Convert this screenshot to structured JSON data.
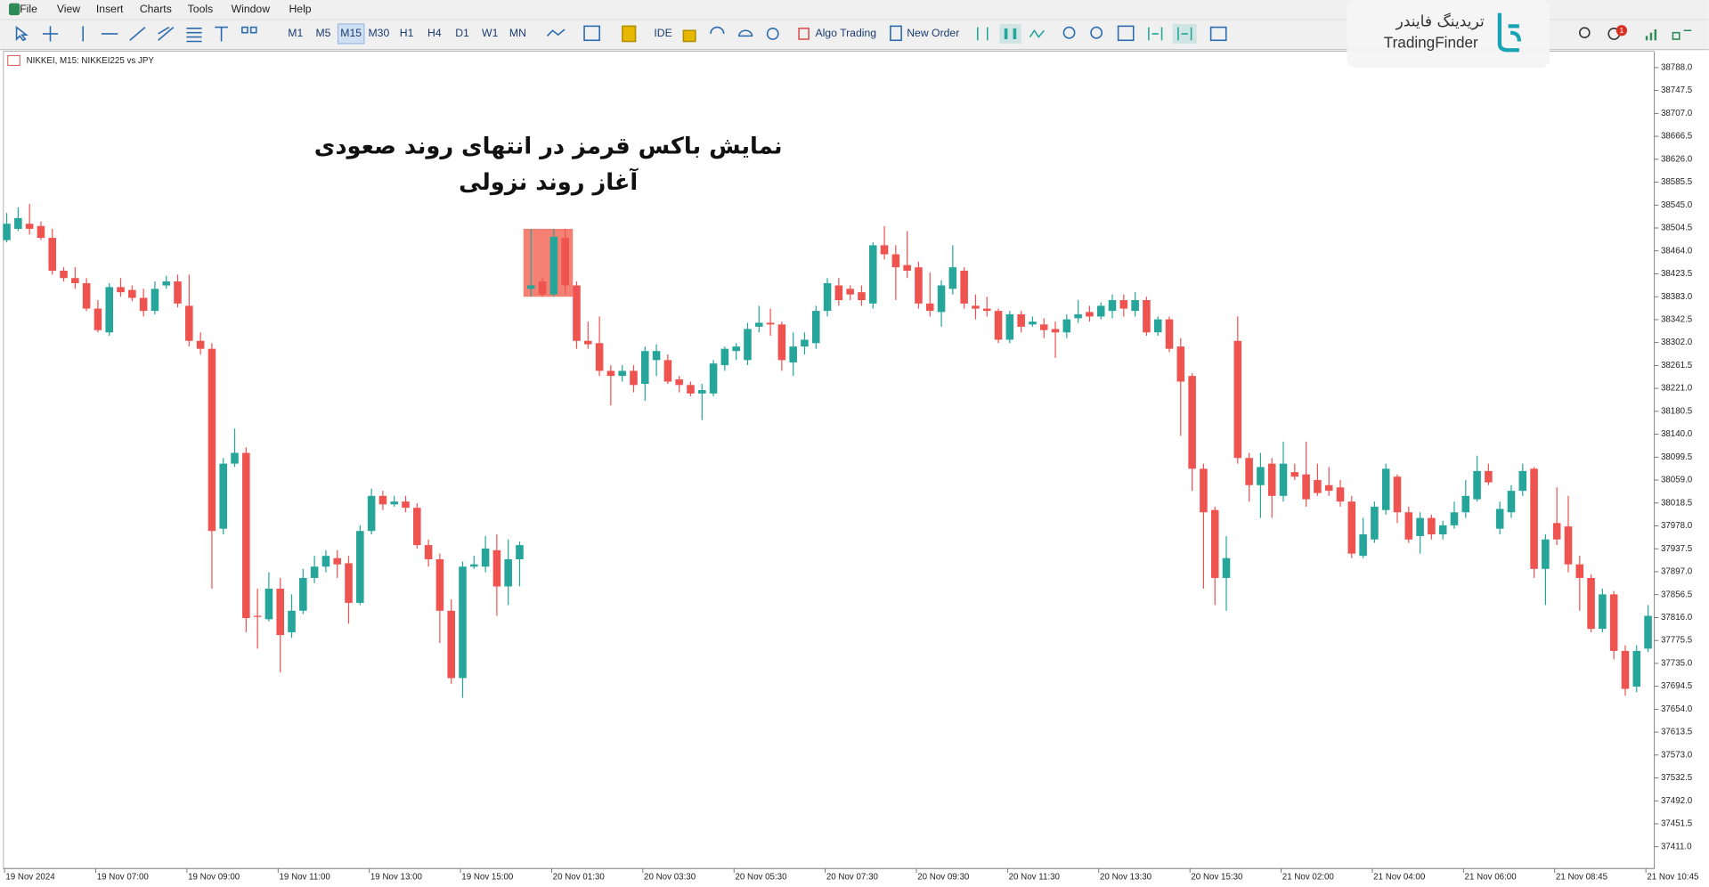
{
  "menu": [
    "File",
    "View",
    "Insert",
    "Charts",
    "Tools",
    "Window",
    "Help"
  ],
  "toolbar": {
    "timeframes": [
      "M1",
      "M5",
      "M15",
      "M30",
      "H1",
      "H4",
      "D1",
      "W1",
      "MN"
    ],
    "active_timeframe": "M15",
    "ide": "IDE",
    "algo_trading": "Algo Trading",
    "new_order": "New Order",
    "notifications": "1"
  },
  "watermark": {
    "fa": "تریدینگ فایندر",
    "en": "TradingFinder"
  },
  "chart_data": {
    "type": "candlestick",
    "label": "NIKKEI, M15:  NIKKEI225 vs JPY",
    "annotation": [
      "نمایش باکس قرمز در انتهای روند صعودی",
      "آغاز روند نزولی"
    ],
    "up_color": "#26a69a",
    "down_color": "#ef5350",
    "box_color": "#f26b5b",
    "candles": [
      [
        38483,
        38531,
        38479,
        38512
      ],
      [
        38503,
        38541,
        38499,
        38522
      ],
      [
        38512,
        38547,
        38493,
        38503
      ],
      [
        38508,
        38516,
        38483,
        38487
      ],
      [
        38487,
        38503,
        38422,
        38429
      ],
      [
        38429,
        38435,
        38410,
        38416
      ],
      [
        38416,
        38435,
        38397,
        38407
      ],
      [
        38407,
        38416,
        38358,
        38362
      ],
      [
        38362,
        38377,
        38320,
        38324
      ],
      [
        38320,
        38407,
        38314,
        38400
      ],
      [
        38400,
        38416,
        38383,
        38391
      ],
      [
        38395,
        38403,
        38375,
        38381
      ],
      [
        38381,
        38397,
        38348,
        38358
      ],
      [
        38358,
        38410,
        38352,
        38397
      ],
      [
        38403,
        38420,
        38397,
        38410
      ],
      [
        38410,
        38422,
        38364,
        38371
      ],
      [
        38367,
        38422,
        38295,
        38305
      ],
      [
        38305,
        38320,
        38281,
        38291
      ],
      [
        38291,
        38301,
        37867,
        37969
      ],
      [
        37973,
        38098,
        37963,
        38088
      ],
      [
        38088,
        38150,
        38082,
        38107
      ],
      [
        38107,
        38117,
        37790,
        37815
      ],
      [
        37819,
        37867,
        37761,
        37817
      ],
      [
        37813,
        37896,
        37809,
        37867
      ],
      [
        37867,
        37886,
        37719,
        37785
      ],
      [
        37790,
        37857,
        37780,
        37828
      ],
      [
        37828,
        37902,
        37822,
        37886
      ],
      [
        37886,
        37925,
        37877,
        37906
      ],
      [
        37906,
        37935,
        37896,
        37925
      ],
      [
        37921,
        37935,
        37886,
        37910
      ],
      [
        37912,
        37925,
        37805,
        37842
      ],
      [
        37842,
        37979,
        37838,
        37969
      ],
      [
        37969,
        38044,
        37963,
        38031
      ],
      [
        38031,
        38040,
        38006,
        38016
      ],
      [
        38016,
        38031,
        38012,
        38021
      ],
      [
        38021,
        38031,
        38002,
        38010
      ],
      [
        38010,
        38018,
        37938,
        37944
      ],
      [
        37944,
        37954,
        37906,
        37919
      ],
      [
        37919,
        37929,
        37771,
        37828
      ],
      [
        37828,
        37848,
        37699,
        37709
      ],
      [
        37709,
        37915,
        37674,
        37906
      ],
      [
        37906,
        37925,
        37902,
        37910
      ],
      [
        37906,
        37960,
        37896,
        37938
      ],
      [
        37935,
        37963,
        37819,
        37871
      ],
      [
        37871,
        37954,
        37838,
        37919
      ],
      [
        37919,
        37950,
        37871,
        37944
      ],
      [
        38397,
        38503,
        38383,
        38403
      ],
      [
        38410,
        38416,
        38383,
        38387
      ],
      [
        38387,
        38503,
        38383,
        38489
      ],
      [
        38487,
        38503,
        38387,
        38403
      ],
      [
        38403,
        38410,
        38291,
        38305
      ],
      [
        38305,
        38339,
        38291,
        38299
      ],
      [
        38301,
        38348,
        38243,
        38252
      ],
      [
        38252,
        38262,
        38191,
        38243
      ],
      [
        38243,
        38262,
        38233,
        38252
      ],
      [
        38252,
        38262,
        38214,
        38227
      ],
      [
        38229,
        38295,
        38199,
        38287
      ],
      [
        38271,
        38299,
        38243,
        38287
      ],
      [
        38271,
        38281,
        38229,
        38233
      ],
      [
        38237,
        38243,
        38214,
        38227
      ],
      [
        38227,
        38233,
        38207,
        38212
      ],
      [
        38212,
        38229,
        38165,
        38218
      ],
      [
        38212,
        38271,
        38207,
        38265
      ],
      [
        38262,
        38295,
        38252,
        38291
      ],
      [
        38287,
        38301,
        38271,
        38295
      ],
      [
        38271,
        38337,
        38262,
        38326
      ],
      [
        38330,
        38367,
        38320,
        38337
      ],
      [
        38337,
        38362,
        38314,
        38334
      ],
      [
        38334,
        38339,
        38252,
        38271
      ],
      [
        38267,
        38320,
        38243,
        38295
      ],
      [
        38295,
        38320,
        38281,
        38307
      ],
      [
        38301,
        38367,
        38291,
        38358
      ],
      [
        38358,
        38416,
        38348,
        38407
      ],
      [
        38403,
        38416,
        38367,
        38377
      ],
      [
        38397,
        38403,
        38377,
        38387
      ],
      [
        38391,
        38403,
        38367,
        38377
      ],
      [
        38371,
        38479,
        38362,
        38474
      ],
      [
        38474,
        38508,
        38449,
        38458
      ],
      [
        38458,
        38474,
        38377,
        38435
      ],
      [
        38439,
        38499,
        38416,
        38429
      ],
      [
        38435,
        38445,
        38362,
        38371
      ],
      [
        38371,
        38426,
        38348,
        38358
      ],
      [
        38356,
        38412,
        38330,
        38403
      ],
      [
        38397,
        38474,
        38387,
        38435
      ],
      [
        38429,
        38435,
        38362,
        38371
      ],
      [
        38367,
        38387,
        38343,
        38362
      ],
      [
        38362,
        38383,
        38348,
        38358
      ],
      [
        38358,
        38362,
        38301,
        38307
      ],
      [
        38307,
        38358,
        38301,
        38352
      ],
      [
        38352,
        38358,
        38320,
        38330
      ],
      [
        38334,
        38348,
        38330,
        38339
      ],
      [
        38334,
        38345,
        38310,
        38324
      ],
      [
        38326,
        38339,
        38275,
        38320
      ],
      [
        38320,
        38352,
        38310,
        38343
      ],
      [
        38345,
        38377,
        38337,
        38352
      ],
      [
        38356,
        38367,
        38339,
        38348
      ],
      [
        38348,
        38373,
        38343,
        38367
      ],
      [
        38358,
        38387,
        38345,
        38377
      ],
      [
        38377,
        38387,
        38348,
        38362
      ],
      [
        38358,
        38391,
        38348,
        38377
      ],
      [
        38377,
        38383,
        38314,
        38320
      ],
      [
        38320,
        38348,
        38314,
        38343
      ],
      [
        38343,
        38348,
        38285,
        38291
      ],
      [
        38295,
        38310,
        38137,
        38233
      ],
      [
        38243,
        38248,
        38040,
        38079
      ],
      [
        38079,
        38088,
        37867,
        38002
      ],
      [
        38006,
        38012,
        37838,
        37886
      ],
      [
        37886,
        37960,
        37828,
        37921
      ],
      [
        38305,
        38348,
        38088,
        38098
      ],
      [
        38098,
        38107,
        38021,
        38050
      ],
      [
        38050,
        38107,
        37992,
        38082
      ],
      [
        38088,
        38098,
        37992,
        38031
      ],
      [
        38031,
        38127,
        38021,
        38088
      ],
      [
        38073,
        38088,
        38059,
        38065
      ],
      [
        38069,
        38127,
        38012,
        38025
      ],
      [
        38059,
        38088,
        38031,
        38036
      ],
      [
        38050,
        38082,
        38031,
        38040
      ],
      [
        38046,
        38059,
        38012,
        38021
      ],
      [
        38021,
        38031,
        37921,
        37929
      ],
      [
        37925,
        37992,
        37921,
        37963
      ],
      [
        37954,
        38021,
        37948,
        38012
      ],
      [
        38006,
        38088,
        37998,
        38079
      ],
      [
        38065,
        38069,
        37983,
        38002
      ],
      [
        38002,
        38012,
        37948,
        37954
      ],
      [
        37960,
        38002,
        37929,
        37992
      ],
      [
        37992,
        37998,
        37954,
        37963
      ],
      [
        37963,
        37987,
        37954,
        37979
      ],
      [
        37979,
        38021,
        37973,
        38002
      ],
      [
        38002,
        38059,
        37992,
        38031
      ],
      [
        38025,
        38102,
        38021,
        38075
      ],
      [
        38075,
        38088,
        38050,
        38055
      ],
      [
        37973,
        38021,
        37963,
        38008
      ],
      [
        38002,
        38050,
        37992,
        38040
      ],
      [
        38040,
        38088,
        38031,
        38075
      ],
      [
        38079,
        38082,
        37886,
        37902
      ],
      [
        37902,
        37963,
        37838,
        37954
      ],
      [
        37983,
        38046,
        37944,
        37954
      ],
      [
        37977,
        38031,
        37896,
        37910
      ],
      [
        37910,
        37925,
        37828,
        37886
      ],
      [
        37886,
        37892,
        37790,
        37796
      ],
      [
        37796,
        37867,
        37790,
        37857
      ],
      [
        37857,
        37863,
        37742,
        37757
      ],
      [
        37757,
        37767,
        37678,
        37690
      ],
      [
        37694,
        37767,
        37684,
        37757
      ],
      [
        37761,
        37838,
        37755,
        37819
      ]
    ],
    "x_labels": [
      "19 Nov 2024",
      "19 Nov 07:00",
      "19 Nov 09:00",
      "19 Nov 11:00",
      "19 Nov 13:00",
      "19 Nov 15:00",
      "20 Nov 01:30",
      "20 Nov 03:30",
      "20 Nov 05:30",
      "20 Nov 07:30",
      "20 Nov 09:30",
      "20 Nov 11:30",
      "20 Nov 13:30",
      "20 Nov 15:30",
      "21 Nov 02:00",
      "21 Nov 04:00",
      "21 Nov 06:00",
      "21 Nov 08:45",
      "21 Nov 10:45"
    ],
    "ylim": [
      37372.5,
      38815
    ],
    "yticks": [
      {
        "value": 38788,
        "label": "38788.0"
      },
      38747.5,
      {
        "value": 38707,
        "label": "38707.0"
      },
      38666.5,
      {
        "value": 38626,
        "label": "38626.0"
      },
      38585.5,
      {
        "value": 38545,
        "label": "38545.0"
      },
      38504.5,
      {
        "value": 38464,
        "label": "38464.0"
      },
      38423.5,
      {
        "value": 38383,
        "label": "38383.0"
      },
      38342.5,
      {
        "value": 38302,
        "label": "38302.0"
      },
      38261.5,
      {
        "value": 38221,
        "label": "38221.0"
      },
      38180.5,
      {
        "value": 38140,
        "label": "38140.0"
      },
      38099.5,
      {
        "value": 38059,
        "label": "38059.0"
      },
      38018.5,
      {
        "value": 37978,
        "label": "37978.0"
      },
      37937.5,
      {
        "value": 37897,
        "label": "37897.0"
      },
      37856.5,
      {
        "value": 37816,
        "label": "37816.0"
      },
      37775.5,
      {
        "value": 37735,
        "label": "37735.0"
      },
      37694.5,
      {
        "value": 37654,
        "label": "37654.0"
      },
      37613.5,
      {
        "value": 37573,
        "label": "37573.0"
      },
      37532.5,
      {
        "value": 37492,
        "label": "37492.0"
      },
      37451.5,
      {
        "value": 37411,
        "label": "37411.0"
      }
    ]
  }
}
